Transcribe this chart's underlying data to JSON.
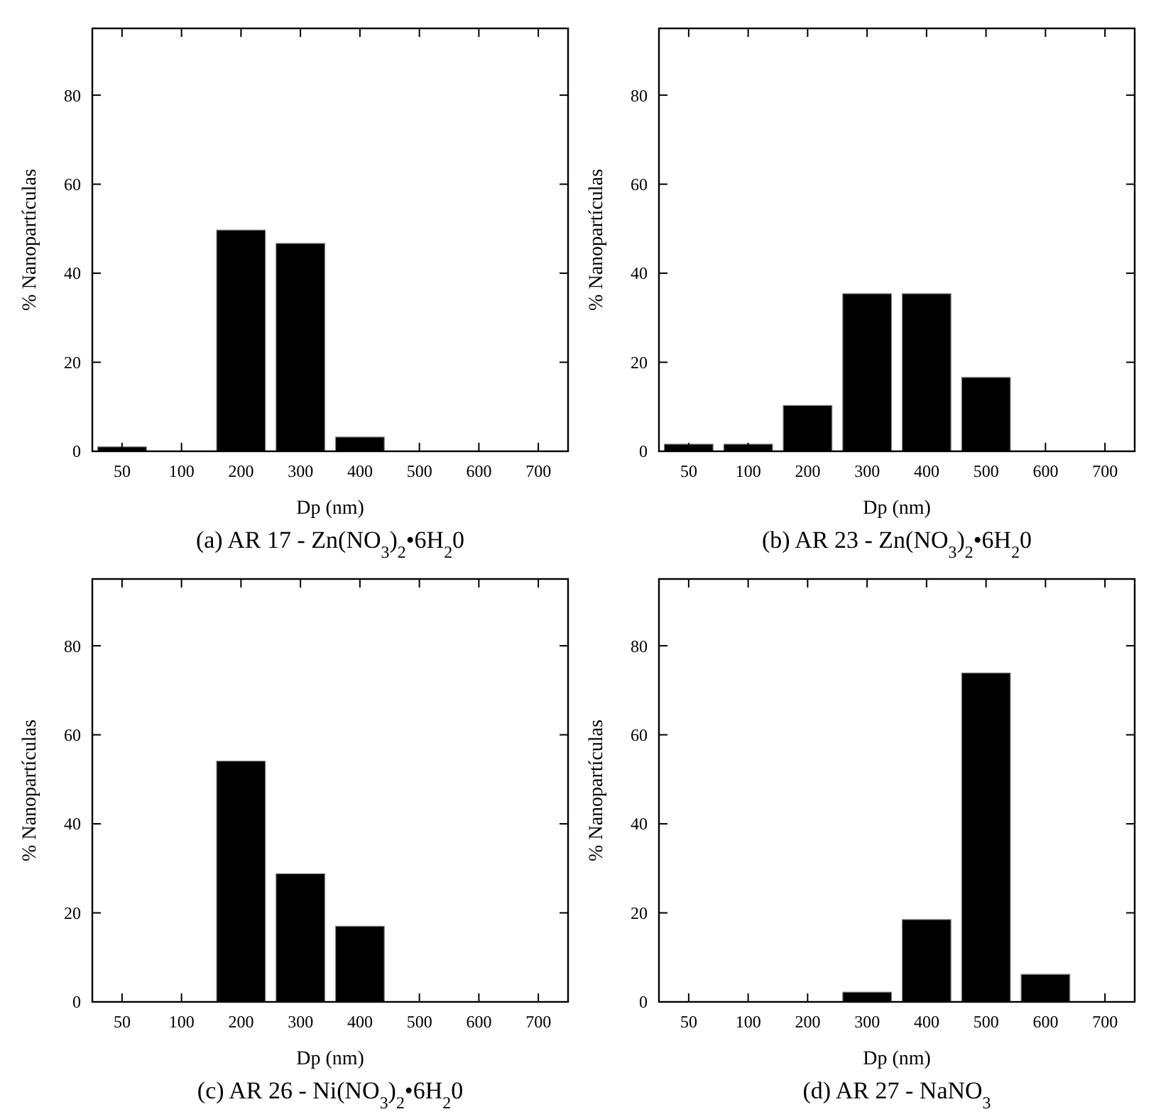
{
  "chart_data": [
    {
      "type": "bar",
      "title": "(a) AR 17 - Zn(NO$_{3}$)$_{2}$•6H$_{2}$0",
      "xlabel": "Dp (nm)",
      "ylabel": "% Nanopartículas",
      "categories": [
        "50",
        "100",
        "200",
        "300",
        "400",
        "500",
        "600",
        "700"
      ],
      "values": [
        1.0,
        0,
        49.7,
        46.7,
        3.2,
        0,
        0,
        0
      ],
      "color": "#000000",
      "ylim": [
        0,
        95
      ],
      "yticks": [
        0,
        20,
        40,
        60,
        80
      ],
      "grid": false
    },
    {
      "type": "bar",
      "title": "(b) AR 23 - Zn(NO$_{3}$)$_{2}$•6H$_{2}$0",
      "xlabel": "Dp (nm)",
      "ylabel": "% Nanopartículas",
      "categories": [
        "50",
        "100",
        "200",
        "300",
        "400",
        "500",
        "600",
        "700"
      ],
      "values": [
        1.6,
        1.6,
        10.3,
        35.4,
        35.4,
        16.6,
        0,
        0
      ],
      "color": "#000000",
      "ylim": [
        0,
        95
      ],
      "yticks": [
        0,
        20,
        40,
        60,
        80
      ],
      "grid": false
    },
    {
      "type": "bar",
      "title": "(c) AR 26 - Ni(NO$_{3}$)$_{2}$•6H$_{2}$0",
      "xlabel": "Dp (nm)",
      "ylabel": "% Nanopartículas",
      "categories": [
        "50",
        "100",
        "200",
        "300",
        "400",
        "500",
        "600",
        "700"
      ],
      "values": [
        0,
        0,
        54.1,
        28.8,
        17.0,
        0,
        0,
        0
      ],
      "color": "#000000",
      "ylim": [
        0,
        95
      ],
      "yticks": [
        0,
        20,
        40,
        60,
        80
      ],
      "grid": false
    },
    {
      "type": "bar",
      "title": "(d) AR 27 - NaNO$_{3}$",
      "xlabel": "Dp (nm)",
      "ylabel": "% Nanopartículas",
      "categories": [
        "50",
        "100",
        "200",
        "300",
        "400",
        "500",
        "600",
        "700"
      ],
      "values": [
        0,
        0,
        0,
        2.2,
        18.5,
        73.9,
        6.2,
        0
      ],
      "color": "#000000",
      "ylim": [
        0,
        95
      ],
      "yticks": [
        0,
        20,
        40,
        60,
        80
      ],
      "grid": false
    }
  ]
}
